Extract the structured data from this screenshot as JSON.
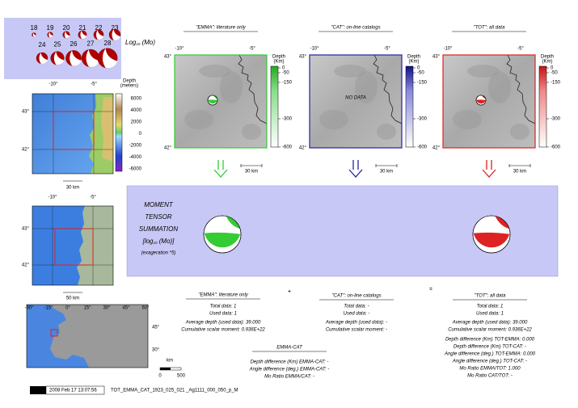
{
  "legend": {
    "magnitudes": [
      "18",
      "19",
      "20",
      "21",
      "22",
      "23",
      "24",
      "25",
      "26",
      "27",
      "28"
    ],
    "scale_label": {
      "base": "Log",
      "sub": "10",
      "rest": " (Mo)"
    }
  },
  "panels": [
    {
      "title": "\"EMMA\": literature only",
      "lon_ticks": [
        "-10°",
        "-5°"
      ],
      "lat_ticks": [
        "43°",
        "42°"
      ],
      "depth_label": [
        "Depth",
        "(Km)"
      ],
      "depth_ticks": [
        "0",
        "-50",
        "-150",
        "-300",
        "-600"
      ],
      "scale": "30 km",
      "color": "#33cc33"
    },
    {
      "title": "\"CAT\": on-line catalogs",
      "lon_ticks": [
        "-10°",
        "-5°"
      ],
      "lat_ticks": [
        "43°",
        "42°"
      ],
      "depth_label": [
        "Depth",
        "(Km)"
      ],
      "depth_ticks": [
        "0",
        "-50",
        "-150",
        "-300",
        "-600"
      ],
      "scale": "30 km",
      "color": "#2222aa",
      "overlay": "NO DATA"
    },
    {
      "title": "\"TOT\": all data",
      "lon_ticks": [
        "-10°",
        "-5°"
      ],
      "lat_ticks": [
        "43°",
        "42°"
      ],
      "depth_label": [
        "Depth",
        "(Km)"
      ],
      "depth_ticks": [
        "0",
        "-50",
        "-150",
        "-300",
        "-600"
      ],
      "scale": "30 km",
      "color": "#dd2222"
    }
  ],
  "topo_map": {
    "lon_ticks": [
      "-10°",
      "-5°"
    ],
    "lat_ticks": [
      "43°",
      "42°"
    ],
    "depth_label": [
      "Depth",
      "(meters)"
    ],
    "depth_ticks": [
      "6000",
      "4000",
      "2000",
      "0",
      "-2000",
      "-4000",
      "-6000"
    ],
    "scale": "30 km"
  },
  "region_map": {
    "lon_ticks": [
      "-10°",
      "-5°"
    ],
    "lat_ticks": [
      "43°",
      "42°"
    ],
    "scale": "50 km"
  },
  "world_map": {
    "lon_ticks": [
      "-30°",
      "-15°",
      "0°",
      "15°",
      "30°",
      "45°",
      "60°"
    ],
    "lat_ticks": [
      "45°",
      "30°"
    ],
    "scale_unit": "km",
    "scale_ticks": [
      "0",
      "500"
    ]
  },
  "summation": {
    "lines": [
      "MOMENT",
      "TENSOR",
      "SUMMATION"
    ],
    "unit": {
      "open": "[log",
      "sub": "10",
      "rest": " (Mo)]"
    },
    "note": "(exageration *5)"
  },
  "stats": {
    "emma": {
      "title": "\"EMMA\": literature only",
      "lines": [
        "Total data:   1",
        "Used data:   1",
        "Average depth (used data):   39.000",
        "Cumulative scalar moment: 0.936E+22"
      ]
    },
    "cat": {
      "title": "\"CAT\": on-line catalogs",
      "lines": [
        "Total data: -",
        "Used data: -",
        "Average depth (used data): -",
        "Cumulative scalar moment: -"
      ]
    },
    "tot": {
      "title": "\"TOT\": all data",
      "lines": [
        "Total data:   1",
        "Used data:   1",
        "Average depth (used data):   39.000",
        "Cumulative scalar moment: 0.936E+22",
        "Depth difference (Km) TOT-EMMA:    0.000",
        "Depth difference (Km) TOT-CAT: -",
        "Angle difference (deg.) TOT-EMMA:    0.000",
        "Angle difference (deg.) TOT-CAT: -",
        "Mo Ratio EMMA/TOT:    1.000",
        "Mo Ratio CAT/TOT: -"
      ]
    },
    "emma_cat": {
      "title": "EMMA-CAT",
      "lines": [
        "Depth difference (Km) EMMA-CAT: -",
        "Angle difference (deg.) EMMA-CAT: -",
        "Mo Ratio EMMA/CAT: -"
      ]
    },
    "plus": "+",
    "equals": "="
  },
  "footer": {
    "logo": "GMT",
    "timestamp": "2008 Feb 17 13:07:56",
    "filename": "TOT_EMMA_CAT_1923_025_021 _Ag1111_000_050_p_M"
  }
}
